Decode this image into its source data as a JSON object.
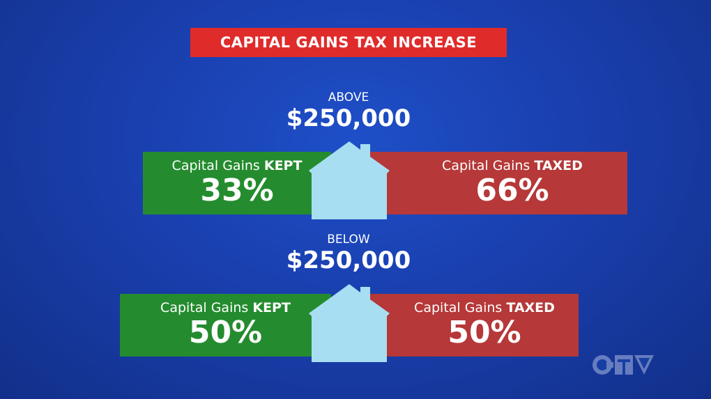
{
  "title": "CAPITAL GAINS TAX INCREASE",
  "sections": [
    {
      "qualifier": "ABOVE",
      "threshold": "$250,000",
      "kept": {
        "label": "Capital Gains",
        "emphasis": "KEPT",
        "percent": "33%"
      },
      "taxed": {
        "label": "Capital Gains",
        "emphasis": "TAXED",
        "percent": "66%"
      }
    },
    {
      "qualifier": "BELOW",
      "threshold": "$250,000",
      "kept": {
        "label": "Capital Gains",
        "emphasis": "KEPT",
        "percent": "50%"
      },
      "taxed": {
        "label": "Capital Gains",
        "emphasis": "TAXED",
        "percent": "50%"
      }
    }
  ],
  "logo": "CTV",
  "colors": {
    "title": "#e02b2b",
    "kept": "#248c2e",
    "taxed": "#b63838",
    "house": "#a8def2",
    "background": "#1a3fae"
  },
  "icons": [
    "house-icon",
    "ctv-logo"
  ]
}
